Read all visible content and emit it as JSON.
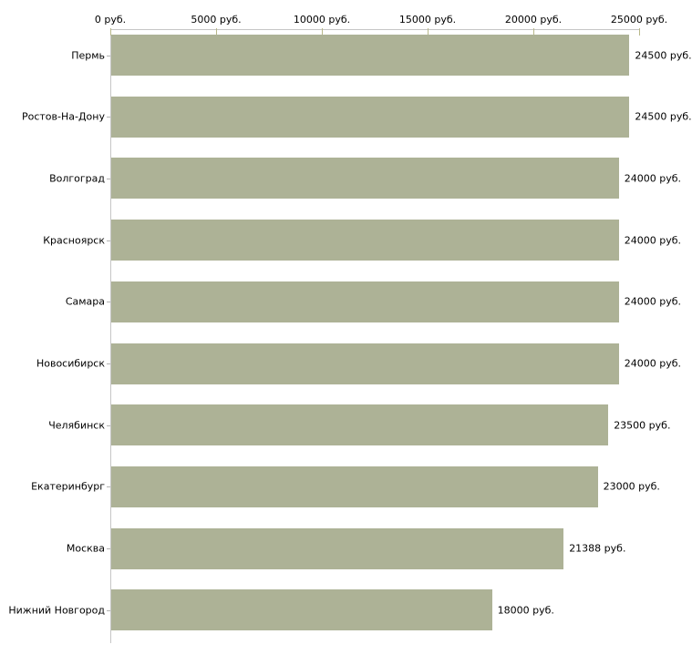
{
  "chart_data": {
    "type": "bar",
    "orientation": "horizontal",
    "title": "",
    "xlabel": "",
    "ylabel": "",
    "grid": false,
    "legend": false,
    "categories": [
      "Пермь",
      "Ростов-На-Дону",
      "Волгоград",
      "Красноярск",
      "Самара",
      "Новосибирск",
      "Челябинск",
      "Екатеринбург",
      "Москва",
      "Нижний Новгород"
    ],
    "values": [
      24500,
      24500,
      24000,
      24000,
      24000,
      24000,
      23500,
      23000,
      21388,
      18000
    ],
    "value_labels": [
      "24500 руб.",
      "24500 руб.",
      "24000 руб.",
      "24000 руб.",
      "24000 руб.",
      "24000 руб.",
      "23500 руб.",
      "23000 руб.",
      "21388 руб.",
      "18000 руб."
    ],
    "x_axis": {
      "position": "top",
      "min": 0,
      "max": 25000,
      "tick_values": [
        0,
        5000,
        10000,
        15000,
        20000,
        25000
      ],
      "tick_labels": [
        "0 руб.",
        "5000 руб.",
        "10000 руб.",
        "15000 руб.",
        "20000 руб.",
        "25000 руб."
      ]
    },
    "colors": {
      "bar": "#adb296",
      "axis_line": "#c6c6c6",
      "x_tick": "#b8b88a",
      "y_tick": "#b3b3b3",
      "text": "#000000",
      "background": "#ffffff"
    }
  }
}
